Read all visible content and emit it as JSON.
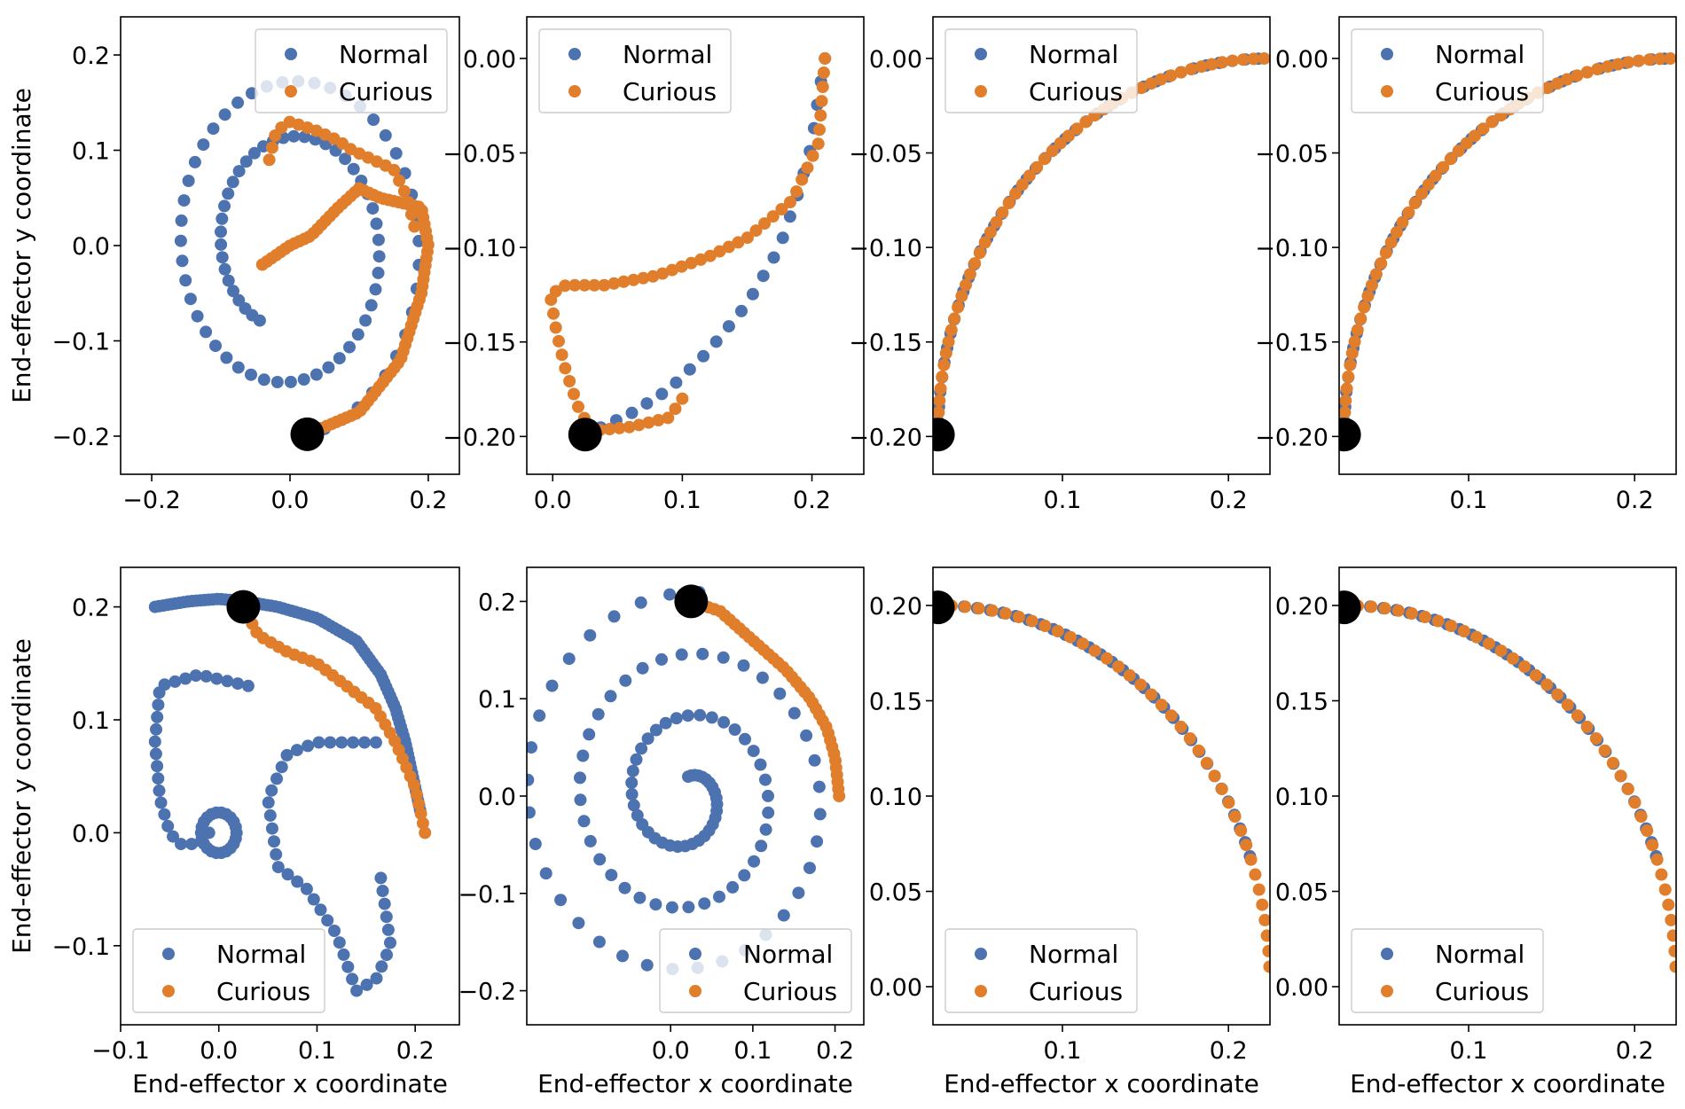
{
  "colors": {
    "normal": "#4c72b0",
    "curious": "#e07e2c",
    "start_marker": "#000000"
  },
  "legend": {
    "normal_label": "Normal",
    "curious_label": "Curious"
  },
  "axes": {
    "xlabel": "End-effector x coordinate",
    "ylabel": "End-effector y coordinate"
  },
  "chart_data": [
    {
      "type": "scatter",
      "panel": "row1-col1",
      "xlim": [
        -0.245,
        0.245
      ],
      "ylim": [
        -0.24,
        0.24
      ],
      "xticks": [
        "−0.2",
        "0.0",
        "0.2"
      ],
      "xtick_values": [
        -0.2,
        0.0,
        0.2
      ],
      "yticks": [
        "−0.2",
        "−0.1",
        "0.0",
        "0.1",
        "0.2"
      ],
      "ytick_values": [
        -0.2,
        -0.1,
        0.0,
        0.1,
        0.2
      ],
      "ylabel_shown": true,
      "xlabel_shown": false,
      "legend_position": "top-right",
      "start_point": [
        0.025,
        -0.198
      ],
      "series": [
        {
          "name": "Normal",
          "color_key": "normal",
          "shape": "spiral",
          "cx": 0.0,
          "cy": 0.0,
          "r0": 0.2,
          "r1": 0.09,
          "a0": -1.45,
          "turns": 1.9,
          "n": 90
        },
        {
          "name": "Curious",
          "color_key": "curious",
          "shape": "path",
          "n": 80,
          "path": [
            [
              0.025,
              -0.198
            ],
            [
              0.1,
              -0.175
            ],
            [
              0.16,
              -0.12
            ],
            [
              0.19,
              -0.05
            ],
            [
              0.2,
              0.0
            ],
            [
              0.19,
              0.04
            ],
            [
              0.13,
              0.05
            ],
            [
              0.1,
              0.06
            ],
            [
              0.07,
              0.04
            ],
            [
              0.03,
              0.01
            ],
            [
              0.0,
              0.0
            ],
            [
              -0.04,
              -0.02
            ]
          ]
        },
        {
          "name": "Curious",
          "color_key": "curious",
          "shape": "path",
          "n": 22,
          "path": [
            [
              -0.03,
              0.09
            ],
            [
              -0.02,
              0.12
            ],
            [
              0.0,
              0.13
            ],
            [
              0.04,
              0.12
            ],
            [
              0.07,
              0.11
            ],
            [
              0.09,
              0.1
            ],
            [
              0.12,
              0.09
            ],
            [
              0.15,
              0.08
            ],
            [
              0.17,
              0.05
            ],
            [
              0.18,
              0.02
            ]
          ]
        }
      ]
    },
    {
      "type": "scatter",
      "panel": "row1-col2",
      "xlim": [
        -0.02,
        0.24
      ],
      "ylim": [
        -0.22,
        0.022
      ],
      "xticks": [
        "0.0",
        "0.1",
        "0.2"
      ],
      "xtick_values": [
        0.0,
        0.1,
        0.2
      ],
      "yticks": [
        "−0.20",
        "−0.15",
        "−0.10",
        "−0.05",
        "0.00"
      ],
      "ytick_values": [
        -0.2,
        -0.15,
        -0.1,
        -0.05,
        0.0
      ],
      "ylabel_shown": false,
      "xlabel_shown": false,
      "legend_position": "top-left",
      "start_point": [
        0.025,
        -0.199
      ],
      "series": [
        {
          "name": "Normal",
          "color_key": "normal",
          "shape": "path",
          "n": 24,
          "path": [
            [
              0.025,
              -0.199
            ],
            [
              0.06,
              -0.188
            ],
            [
              0.09,
              -0.175
            ],
            [
              0.12,
              -0.155
            ],
            [
              0.15,
              -0.13
            ],
            [
              0.175,
              -0.1
            ],
            [
              0.19,
              -0.07
            ],
            [
              0.2,
              -0.045
            ],
            [
              0.205,
              -0.02
            ],
            [
              0.21,
              0.0
            ]
          ]
        },
        {
          "name": "Curious",
          "color_key": "curious",
          "shape": "path",
          "n": 58,
          "path": [
            [
              0.21,
              0.0
            ],
            [
              0.205,
              -0.045
            ],
            [
              0.185,
              -0.075
            ],
            [
              0.15,
              -0.095
            ],
            [
              0.12,
              -0.105
            ],
            [
              0.08,
              -0.115
            ],
            [
              0.04,
              -0.12
            ],
            [
              0.01,
              -0.12
            ],
            [
              -0.002,
              -0.125
            ],
            [
              0.003,
              -0.145
            ],
            [
              0.01,
              -0.165
            ],
            [
              0.02,
              -0.185
            ],
            [
              0.03,
              -0.197
            ],
            [
              0.06,
              -0.195
            ],
            [
              0.09,
              -0.19
            ],
            [
              0.1,
              -0.18
            ]
          ]
        }
      ]
    },
    {
      "type": "scatter",
      "panel": "row1-col3",
      "xlim": [
        0.022,
        0.225
      ],
      "ylim": [
        -0.22,
        0.022
      ],
      "xticks": [
        "0.1",
        "0.2"
      ],
      "xtick_values": [
        0.1,
        0.2
      ],
      "yticks": [
        "−0.20",
        "−0.15",
        "−0.10",
        "−0.05",
        "0.00"
      ],
      "ytick_values": [
        -0.2,
        -0.15,
        -0.1,
        -0.05,
        0.0
      ],
      "ylabel_shown": false,
      "xlabel_shown": false,
      "legend_position": "top-left",
      "start_point": [
        0.025,
        -0.199
      ],
      "series": [
        {
          "name": "Normal",
          "color_key": "normal",
          "shape": "arc",
          "cx": 0.225,
          "cy": -0.2,
          "r": 0.2,
          "a0": 180,
          "a1": 92,
          "n": 40
        },
        {
          "name": "Curious",
          "color_key": "curious",
          "shape": "arc",
          "cx": 0.225,
          "cy": -0.2,
          "r": 0.2,
          "a0": 180,
          "a1": 91,
          "n": 50
        }
      ]
    },
    {
      "type": "scatter",
      "panel": "row1-col4",
      "xlim": [
        0.022,
        0.225
      ],
      "ylim": [
        -0.22,
        0.022
      ],
      "xticks": [
        "0.1",
        "0.2"
      ],
      "xtick_values": [
        0.1,
        0.2
      ],
      "yticks": [
        "−0.20",
        "−0.15",
        "−0.10",
        "−0.05",
        "0.00"
      ],
      "ytick_values": [
        -0.2,
        -0.15,
        -0.1,
        -0.05,
        0.0
      ],
      "ylabel_shown": false,
      "xlabel_shown": false,
      "legend_position": "top-left",
      "start_point": [
        0.025,
        -0.199
      ],
      "series": [
        {
          "name": "Normal",
          "color_key": "normal",
          "shape": "arc",
          "cx": 0.225,
          "cy": -0.2,
          "r": 0.2,
          "a0": 180,
          "a1": 92,
          "n": 40
        },
        {
          "name": "Curious",
          "color_key": "curious",
          "shape": "arc",
          "cx": 0.225,
          "cy": -0.2,
          "r": 0.2,
          "a0": 180,
          "a1": 91,
          "n": 50
        }
      ]
    },
    {
      "type": "scatter",
      "panel": "row2-col1",
      "xlim": [
        -0.1,
        0.245
      ],
      "ylim": [
        -0.17,
        0.235
      ],
      "xticks": [
        "−0.1",
        "0.0",
        "0.1",
        "0.2"
      ],
      "xtick_values": [
        -0.1,
        0.0,
        0.1,
        0.2
      ],
      "yticks": [
        "−0.1",
        "0.0",
        "0.1",
        "0.2"
      ],
      "ytick_values": [
        -0.1,
        0.0,
        0.1,
        0.2
      ],
      "ylabel_shown": true,
      "xlabel_shown": true,
      "legend_position": "bottom-left",
      "start_point": [
        0.025,
        0.2
      ],
      "series": [
        {
          "name": "Normal",
          "color_key": "normal",
          "shape": "path",
          "n": 90,
          "path": [
            [
              -0.065,
              0.2
            ],
            [
              -0.03,
              0.205
            ],
            [
              0.0,
              0.207
            ],
            [
              0.025,
              0.205
            ],
            [
              0.06,
              0.2
            ],
            [
              0.1,
              0.19
            ],
            [
              0.14,
              0.17
            ],
            [
              0.165,
              0.14
            ],
            [
              0.18,
              0.11
            ],
            [
              0.19,
              0.08
            ],
            [
              0.2,
              0.04
            ],
            [
              0.205,
              0.02
            ]
          ]
        },
        {
          "name": "Normal",
          "color_key": "normal",
          "shape": "path",
          "n": 40,
          "path": [
            [
              0.165,
              -0.04
            ],
            [
              0.175,
              -0.1
            ],
            [
              0.16,
              -0.13
            ],
            [
              0.14,
              -0.14
            ],
            [
              0.12,
              -0.09
            ],
            [
              0.09,
              -0.05
            ],
            [
              0.06,
              -0.03
            ],
            [
              0.05,
              0.03
            ],
            [
              0.07,
              0.07
            ],
            [
              0.1,
              0.08
            ],
            [
              0.13,
              0.08
            ],
            [
              0.16,
              0.08
            ]
          ]
        },
        {
          "name": "Normal",
          "color_key": "normal",
          "shape": "path",
          "n": 26,
          "path": [
            [
              0.03,
              0.13
            ],
            [
              -0.02,
              0.14
            ],
            [
              -0.06,
              0.13
            ],
            [
              -0.065,
              0.08
            ],
            [
              -0.06,
              0.03
            ],
            [
              -0.05,
              0.0
            ],
            [
              -0.04,
              -0.01
            ],
            [
              -0.02,
              -0.01
            ],
            [
              -0.01,
              0.0
            ]
          ]
        },
        {
          "name": "Normal",
          "color_key": "normal",
          "shape": "loop",
          "cx": 0.0,
          "cy": 0.0,
          "r": 0.018,
          "n": 22
        },
        {
          "name": "Curious",
          "color_key": "curious",
          "shape": "path",
          "n": 34,
          "path": [
            [
              0.025,
              0.2
            ],
            [
              0.04,
              0.175
            ],
            [
              0.07,
              0.16
            ],
            [
              0.1,
              0.15
            ],
            [
              0.13,
              0.13
            ],
            [
              0.16,
              0.11
            ],
            [
              0.18,
              0.08
            ],
            [
              0.2,
              0.04
            ],
            [
              0.21,
              0.0
            ]
          ]
        }
      ]
    },
    {
      "type": "scatter",
      "panel": "row2-col2",
      "xlim": [
        -0.175,
        0.235
      ],
      "ylim": [
        -0.235,
        0.235
      ],
      "xticks": [
        "0.0",
        "0.1",
        "0.2"
      ],
      "xtick_values": [
        0.0,
        0.1,
        0.2
      ],
      "yticks": [
        "−0.2",
        "−0.1",
        "0.0",
        "0.1",
        "0.2"
      ],
      "ytick_values": [
        -0.2,
        -0.1,
        0.0,
        0.1,
        0.2
      ],
      "ylabel_shown": false,
      "xlabel_shown": true,
      "legend_position": "bottom-right",
      "start_point": [
        0.025,
        0.2
      ],
      "series": [
        {
          "name": "Normal",
          "color_key": "normal",
          "shape": "spiral",
          "cx": 0.02,
          "cy": 0.0,
          "r0": 0.21,
          "r1": 0.02,
          "a0": 1.5,
          "turns": 3.0,
          "n": 110
        },
        {
          "name": "Curious",
          "color_key": "curious",
          "shape": "path",
          "n": 40,
          "path": [
            [
              0.025,
              0.2
            ],
            [
              0.06,
              0.19
            ],
            [
              0.1,
              0.16
            ],
            [
              0.14,
              0.13
            ],
            [
              0.17,
              0.1
            ],
            [
              0.19,
              0.07
            ],
            [
              0.2,
              0.04
            ],
            [
              0.205,
              0.0
            ]
          ]
        }
      ]
    },
    {
      "type": "scatter",
      "panel": "row2-col3",
      "xlim": [
        0.022,
        0.225
      ],
      "ylim": [
        -0.02,
        0.22
      ],
      "xticks": [
        "0.1",
        "0.2"
      ],
      "xtick_values": [
        0.1,
        0.2
      ],
      "yticks": [
        "0.00",
        "0.05",
        "0.10",
        "0.15",
        "0.20"
      ],
      "ytick_values": [
        0.0,
        0.05,
        0.1,
        0.15,
        0.2
      ],
      "ylabel_shown": false,
      "xlabel_shown": true,
      "legend_position": "bottom-left",
      "start_point": [
        0.025,
        0.199
      ],
      "series": [
        {
          "name": "Normal",
          "color_key": "normal",
          "shape": "arc",
          "cx": 0.025,
          "cy": 0.0,
          "r": 0.2,
          "a0": 90,
          "a1": 20,
          "n": 32
        },
        {
          "name": "Curious",
          "color_key": "curious",
          "shape": "arc",
          "cx": 0.025,
          "cy": 0.0,
          "r": 0.2,
          "a0": 90,
          "a1": 3,
          "n": 38
        }
      ]
    },
    {
      "type": "scatter",
      "panel": "row2-col4",
      "xlim": [
        0.022,
        0.225
      ],
      "ylim": [
        -0.02,
        0.22
      ],
      "xticks": [
        "0.1",
        "0.2"
      ],
      "xtick_values": [
        0.1,
        0.2
      ],
      "yticks": [
        "0.00",
        "0.05",
        "0.10",
        "0.15",
        "0.20"
      ],
      "ytick_values": [
        0.0,
        0.05,
        0.1,
        0.15,
        0.2
      ],
      "ylabel_shown": false,
      "xlabel_shown": true,
      "legend_position": "bottom-left",
      "start_point": [
        0.025,
        0.199
      ],
      "series": [
        {
          "name": "Normal",
          "color_key": "normal",
          "shape": "arc",
          "cx": 0.025,
          "cy": 0.0,
          "r": 0.2,
          "a0": 90,
          "a1": 20,
          "n": 32
        },
        {
          "name": "Curious",
          "color_key": "curious",
          "shape": "arc",
          "cx": 0.025,
          "cy": 0.0,
          "r": 0.2,
          "a0": 90,
          "a1": 3,
          "n": 38
        }
      ]
    }
  ]
}
